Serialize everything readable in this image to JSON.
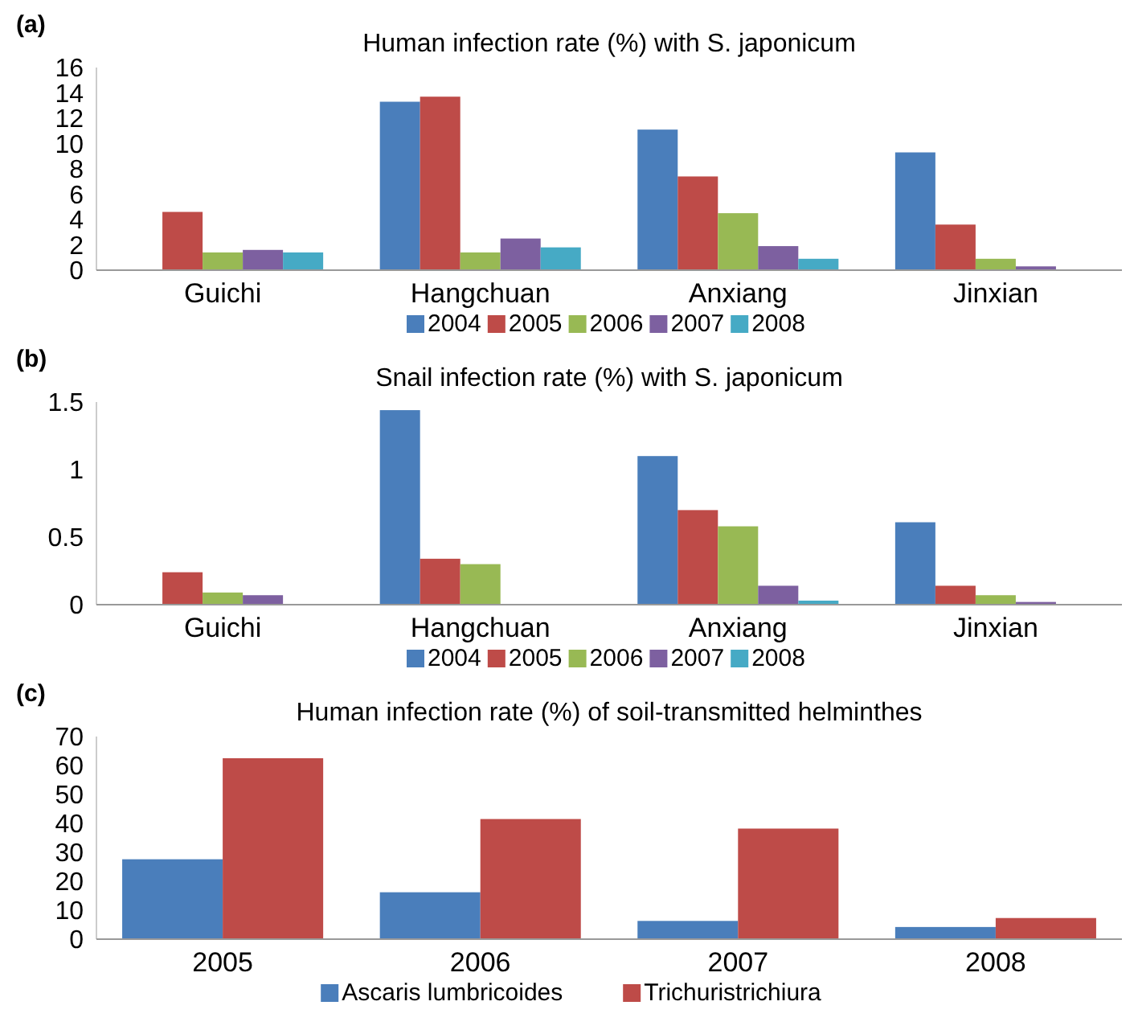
{
  "chart_data": [
    {
      "type": "bar",
      "title": "Human infection rate (%) with S. japonicum",
      "annotations": [
        "(a)"
      ],
      "categories": [
        "Guichi",
        "Hangchuan",
        "Anxiang",
        "Jinxian"
      ],
      "ylim": [
        0,
        16
      ],
      "yticks": [
        0,
        2,
        4,
        6,
        8,
        10,
        12,
        14,
        16
      ],
      "grid": false,
      "legend": "bottom",
      "series": [
        {
          "name": "2004",
          "color": "#4a7ebb",
          "values": [
            null,
            13.3,
            11.1,
            9.3
          ]
        },
        {
          "name": "2005",
          "color": "#be4b48",
          "values": [
            4.6,
            13.7,
            7.4,
            3.6
          ]
        },
        {
          "name": "2006",
          "color": "#98b954",
          "values": [
            1.4,
            1.4,
            4.5,
            0.9
          ]
        },
        {
          "name": "2007",
          "color": "#7d60a0",
          "values": [
            1.6,
            2.5,
            1.9,
            0.3
          ]
        },
        {
          "name": "2008",
          "color": "#46aac5",
          "values": [
            1.4,
            1.8,
            0.9,
            null
          ]
        }
      ]
    },
    {
      "type": "bar",
      "title": "Snail infection rate (%) with S. japonicum",
      "annotations": [
        "(b)"
      ],
      "categories": [
        "Guichi",
        "Hangchuan",
        "Anxiang",
        "Jinxian"
      ],
      "ylim": [
        0,
        1.5
      ],
      "yticks": [
        0,
        {
          "value": 0.5,
          "label": "0.5"
        },
        1,
        {
          "value": 1.5,
          "label": "1.5"
        }
      ],
      "grid": false,
      "legend": "bottom",
      "series": [
        {
          "name": "2004",
          "color": "#4a7ebb",
          "values": [
            null,
            1.44,
            1.1,
            0.61
          ]
        },
        {
          "name": "2005",
          "color": "#be4b48",
          "values": [
            0.24,
            0.34,
            0.7,
            0.14
          ]
        },
        {
          "name": "2006",
          "color": "#98b954",
          "values": [
            0.09,
            0.3,
            0.58,
            0.07
          ]
        },
        {
          "name": "2007",
          "color": "#7d60a0",
          "values": [
            0.07,
            null,
            0.14,
            0.02
          ]
        },
        {
          "name": "2008",
          "color": "#46aac5",
          "values": [
            null,
            null,
            0.03,
            null
          ]
        }
      ]
    },
    {
      "type": "bar",
      "title": "Human infection rate (%) of soil-transmitted helminthes",
      "annotations": [
        "(c)"
      ],
      "categories": [
        "2005",
        "2006",
        "2007",
        "2008"
      ],
      "ylim": [
        0,
        70
      ],
      "yticks": [
        0,
        10,
        20,
        30,
        40,
        50,
        60,
        70
      ],
      "grid": false,
      "legend": "bottom",
      "series": [
        {
          "name": "Ascaris lumbricoides",
          "color": "#4a7ebb",
          "values": [
            27.6,
            16.2,
            6.3,
            4.2
          ]
        },
        {
          "name": "Trichuristrichiura",
          "color": "#be4b48",
          "values": [
            62.5,
            41.5,
            38.2,
            7.3
          ]
        }
      ]
    }
  ]
}
